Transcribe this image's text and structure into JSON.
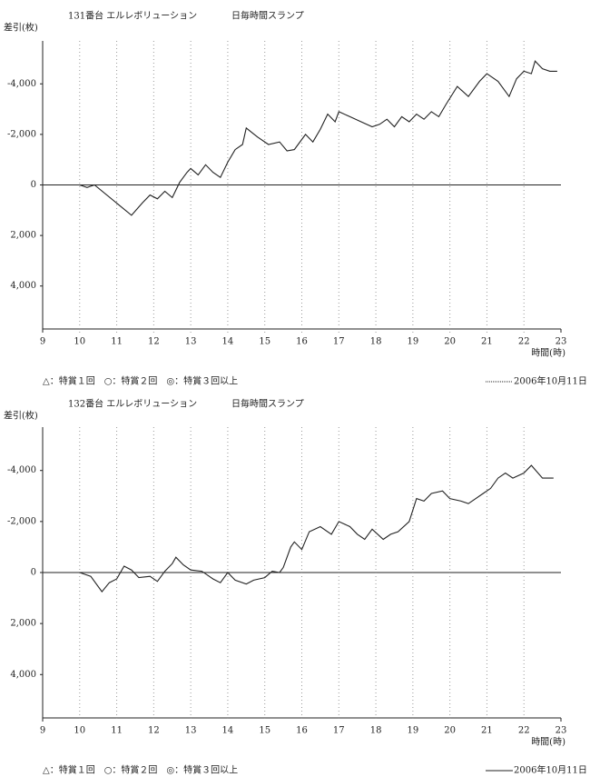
{
  "chart_data": [
    {
      "type": "line",
      "title": "131番台 エルレボリューション",
      "subtitle": "日毎時間スランプ",
      "ylabel": "差引(枚)",
      "xlabel": "時間(時)",
      "color": "#222",
      "xlim": [
        9,
        23
      ],
      "xticks": [
        9,
        10,
        11,
        12,
        13,
        14,
        15,
        16,
        17,
        18,
        19,
        20,
        21,
        22,
        23
      ],
      "ylim": [
        5700,
        -5700
      ],
      "yticks": [
        {
          "value": -4000,
          "label": "-4,000"
        },
        {
          "value": -2000,
          "label": "-2,000"
        },
        0,
        {
          "value": 2000,
          "label": "2,000"
        },
        {
          "value": 4000,
          "label": "4,000"
        }
      ],
      "x": [
        9,
        10,
        10.2,
        10.4,
        11.4,
        11.7,
        11.9,
        12.1,
        12.3,
        12.5,
        12.7,
        12.9,
        13.0,
        13.2,
        13.4,
        13.6,
        13.8,
        14.0,
        14.2,
        14.4,
        14.5,
        14.8,
        15.1,
        15.4,
        15.6,
        15.8,
        15.9,
        16.1,
        16.3,
        16.5,
        16.7,
        16.9,
        17.0,
        17.3,
        17.6,
        17.9,
        18.1,
        18.3,
        18.5,
        18.7,
        18.9,
        19.1,
        19.3,
        19.5,
        19.7,
        19.9,
        20.2,
        20.5,
        20.8,
        21.0,
        21.3,
        21.5,
        21.6,
        21.8,
        22.0,
        22.2,
        22.3,
        22.5,
        22.7,
        22.9
      ],
      "values": [
        0,
        0,
        100,
        0,
        1200,
        700,
        400,
        550,
        250,
        500,
        -100,
        -500,
        -650,
        -400,
        -800,
        -500,
        -300,
        -900,
        -1400,
        -1600,
        -2250,
        -1900,
        -1600,
        -1700,
        -1350,
        -1400,
        -1600,
        -2000,
        -1700,
        -2200,
        -2800,
        -2500,
        -2900,
        -2700,
        -2500,
        -2300,
        -2400,
        -2600,
        -2300,
        -2700,
        -2500,
        -2800,
        -2600,
        -2900,
        -2700,
        -3200,
        -3900,
        -3500,
        -4100,
        -4400,
        -4100,
        -3700,
        -3500,
        -4200,
        -4500,
        -4400,
        -4900,
        -4600,
        -4500,
        -4500
      ],
      "annotations": [
        "△：特賞１回　○：特賞２回　◎：特賞３回以上",
        "2006年10月11日"
      ]
    },
    {
      "type": "line",
      "title": "132番台 エルレボリューション",
      "subtitle": "日毎時間スランプ",
      "ylabel": "差引(枚)",
      "xlabel": "時間(時)",
      "color": "#222",
      "xlim": [
        9,
        23
      ],
      "xticks": [
        9,
        10,
        11,
        12,
        13,
        14,
        15,
        16,
        17,
        18,
        19,
        20,
        21,
        22,
        23
      ],
      "ylim": [
        5700,
        -5700
      ],
      "yticks": [
        {
          "value": -4000,
          "label": "-4,000"
        },
        {
          "value": -2000,
          "label": "-2,000"
        },
        0,
        {
          "value": 2000,
          "label": "2,000"
        },
        {
          "value": 4000,
          "label": "4,000"
        }
      ],
      "x": [
        9,
        10,
        10.3,
        10.6,
        10.8,
        11.0,
        11.2,
        11.4,
        11.6,
        11.9,
        12.1,
        12.3,
        12.5,
        12.6,
        12.8,
        13.0,
        13.3,
        13.6,
        13.8,
        14.0,
        14.2,
        14.5,
        14.7,
        15.0,
        15.2,
        15.4,
        15.5,
        15.7,
        15.8,
        16.0,
        16.2,
        16.5,
        16.8,
        17.0,
        17.3,
        17.5,
        17.7,
        17.9,
        18.2,
        18.4,
        18.6,
        18.9,
        19.1,
        19.3,
        19.5,
        19.8,
        20.0,
        20.3,
        20.5,
        20.7,
        20.9,
        21.1,
        21.3,
        21.5,
        21.7,
        22.0,
        22.2,
        22.5,
        22.8
      ],
      "values": [
        0,
        0,
        150,
        750,
        400,
        250,
        -250,
        -100,
        200,
        150,
        350,
        -50,
        -350,
        -600,
        -300,
        -100,
        -50,
        250,
        400,
        0,
        300,
        450,
        300,
        200,
        -50,
        0,
        -200,
        -1000,
        -1200,
        -900,
        -1600,
        -1800,
        -1500,
        -2000,
        -1800,
        -1500,
        -1300,
        -1700,
        -1300,
        -1500,
        -1600,
        -2000,
        -2900,
        -2800,
        -3100,
        -3200,
        -2900,
        -2800,
        -2700,
        -2900,
        -3100,
        -3300,
        -3700,
        -3900,
        -3700,
        -3900,
        -4200,
        -3700,
        -3700
      ],
      "annotations": [
        "△：特賞１回　○：特賞２回　◎：特賞３回以上",
        "2006年10月11日"
      ]
    }
  ]
}
